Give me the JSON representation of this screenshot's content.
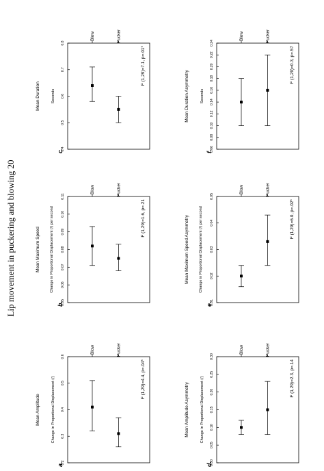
{
  "page": {
    "title": "Lip movement in puckering and blowing 20"
  },
  "chart_data": [
    {
      "type": "errorbar",
      "panel": "a.",
      "title": "Mean Amplitude",
      "ylabel": "Change in Proportional Displacement (/)",
      "categories": [
        "Pucker",
        "Blow"
      ],
      "values": [
        0.31,
        0.41
      ],
      "err_low": [
        0.26,
        0.32
      ],
      "err_high": [
        0.37,
        0.51
      ],
      "ylim": [
        0.2,
        0.6
      ],
      "yticks": [
        "0.2",
        "0.3",
        "0.4",
        "0.5",
        "0.6"
      ],
      "ytick_values": [
        0.2,
        0.3,
        0.4,
        0.5,
        0.6
      ],
      "annotation": "F (1,29)=4.4, p=.04*"
    },
    {
      "type": "errorbar",
      "panel": "b.",
      "title": "Mean Maximum Speed",
      "ylabel": "Change in Proportional Displacement (/) per second",
      "categories": [
        "Pucker",
        "Blow"
      ],
      "values": [
        0.075,
        0.082
      ],
      "err_low": [
        0.068,
        0.071
      ],
      "err_high": [
        0.083,
        0.093
      ],
      "ylim": [
        0.05,
        0.11
      ],
      "yticks": [
        "0.05",
        "0.06",
        "0.07",
        "0.08",
        "0.09",
        "0.10",
        "0.11"
      ],
      "ytick_values": [
        0.05,
        0.06,
        0.07,
        0.08,
        0.09,
        0.1,
        0.11
      ],
      "annotation": "F (1,29)=1.6, p=.21"
    },
    {
      "type": "errorbar",
      "panel": "c.",
      "title": "Mean Duration",
      "ylabel": "Seconds",
      "categories": [
        "Pucker",
        "Blow"
      ],
      "values": [
        0.55,
        0.64
      ],
      "err_low": [
        0.5,
        0.58
      ],
      "err_high": [
        0.6,
        0.71
      ],
      "ylim": [
        0.4,
        0.8
      ],
      "yticks": [
        "0.4",
        "0.5",
        "0.6",
        "0.7",
        "0.8"
      ],
      "ytick_values": [
        0.4,
        0.5,
        0.6,
        0.7,
        0.8
      ],
      "annotation": "F (1,29)=7.1, p=.01*"
    },
    {
      "type": "errorbar",
      "panel": "d.",
      "title": "Mean Amplitude Asymmetry",
      "ylabel": "Change in Proportional Displacement (/)",
      "categories": [
        "Pucker",
        "Blow"
      ],
      "values": [
        0.15,
        0.1
      ],
      "err_low": [
        0.08,
        0.08
      ],
      "err_high": [
        0.23,
        0.12
      ],
      "ylim": [
        0.0,
        0.3
      ],
      "yticks": [
        "0.00",
        "0.05",
        "0.10",
        "0.15",
        "0.20",
        "0.25",
        "0.30"
      ],
      "ytick_values": [
        0.0,
        0.05,
        0.1,
        0.15,
        0.2,
        0.25,
        0.3
      ],
      "annotation": "F (1,29)=2.3, p=.14"
    },
    {
      "type": "errorbar",
      "panel": "e.",
      "title": "Mean Maximum Speed Asymmetry",
      "ylabel": "Change in Proportional Displacement (/) per second",
      "categories": [
        "Pucker",
        "Blow"
      ],
      "values": [
        0.033,
        0.02
      ],
      "err_low": [
        0.024,
        0.016
      ],
      "err_high": [
        0.043,
        0.024
      ],
      "ylim": [
        0.01,
        0.05
      ],
      "yticks": [
        "0.01",
        "0.02",
        "0.03",
        "0.04",
        "0.05"
      ],
      "ytick_values": [
        0.01,
        0.02,
        0.03,
        0.04,
        0.05
      ],
      "annotation": "F (1,29)=6.0, p=.02*"
    },
    {
      "type": "errorbar",
      "panel": "f.",
      "title": "Mean Duration Asymmetry",
      "ylabel": "Seconds",
      "categories": [
        "Pucker",
        "Blow"
      ],
      "values": [
        0.16,
        0.14
      ],
      "err_low": [
        0.1,
        0.1
      ],
      "err_high": [
        0.22,
        0.18
      ],
      "ylim": [
        0.06,
        0.24
      ],
      "yticks": [
        "0.06",
        "0.08",
        "0.10",
        "0.12",
        "0.14",
        "0.16",
        "0.18",
        "0.20",
        "0.22",
        "0.24"
      ],
      "ytick_values": [
        0.06,
        0.08,
        0.1,
        0.12,
        0.14,
        0.16,
        0.18,
        0.2,
        0.22,
        0.24
      ],
      "annotation": "F (1,29)=0.3, p=.57"
    }
  ]
}
